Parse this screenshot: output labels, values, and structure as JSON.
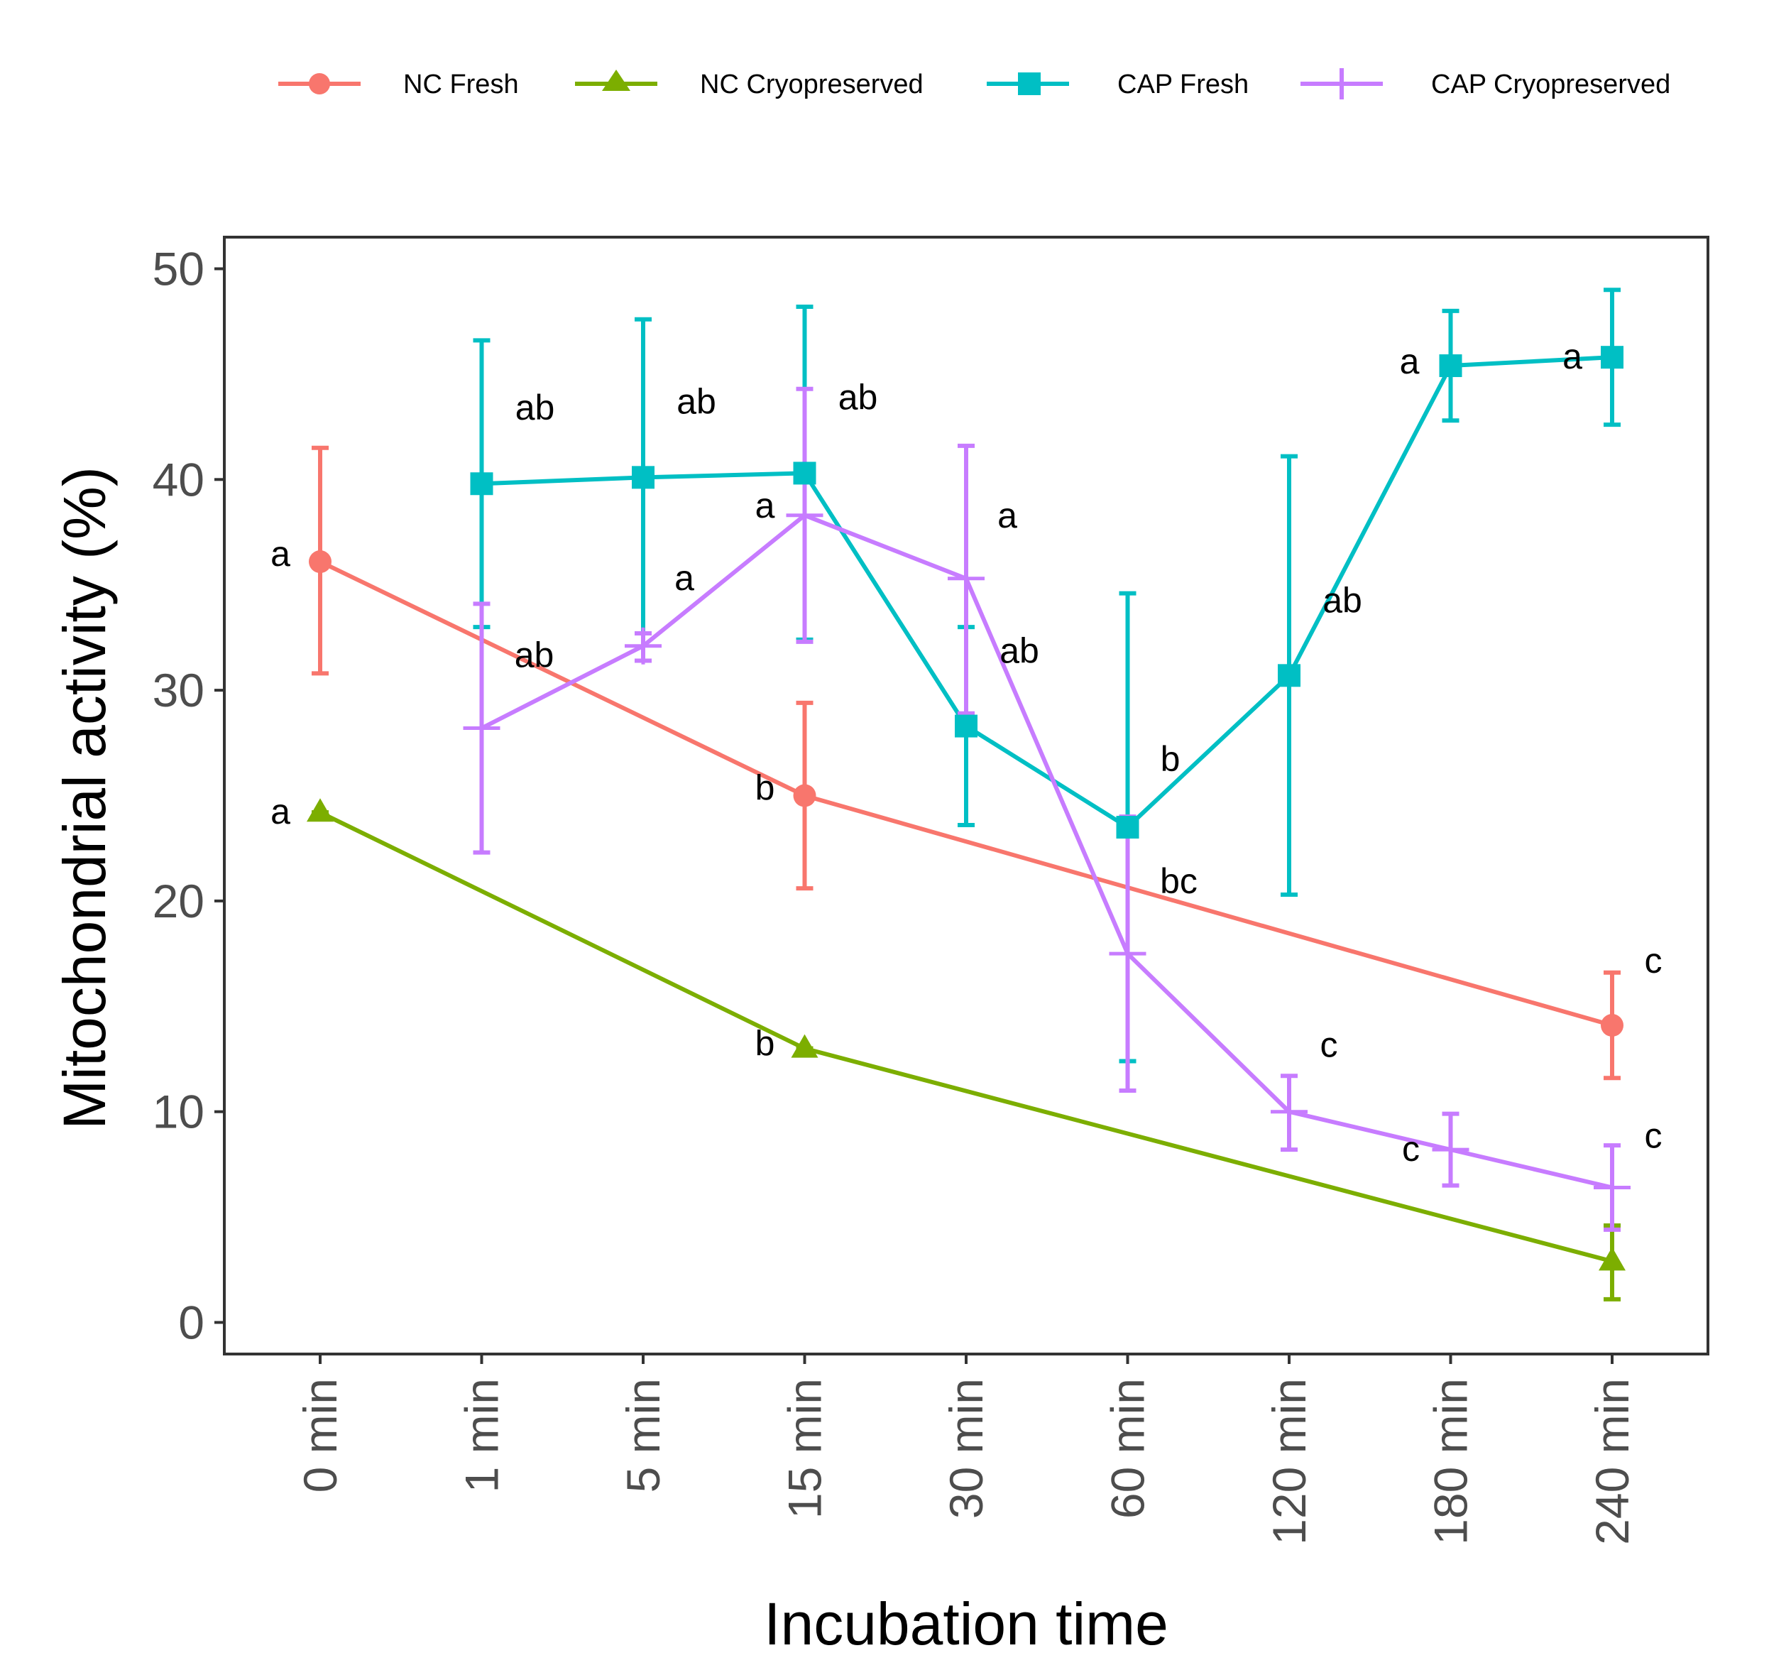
{
  "chart_data": {
    "type": "line",
    "title": "",
    "xlabel": "Incubation time",
    "ylabel": "Mitochondrial activity (%)",
    "categories": [
      "0 min",
      "1 min",
      "5 min",
      "15 min",
      "30 min",
      "60 min",
      "120 min",
      "180 min",
      "240 min"
    ],
    "ylim": [
      -1.5,
      51.5
    ],
    "yticks": [
      0,
      10,
      20,
      30,
      40,
      50
    ],
    "grid": false,
    "legend_position": "top",
    "series": [
      {
        "name": "NC Fresh",
        "color": "#F8766D",
        "marker": "circle",
        "points": [
          {
            "x": "0 min",
            "y": 36.1,
            "lo": 30.8,
            "hi": 41.5,
            "label": "a"
          },
          {
            "x": "15 min",
            "y": 25.0,
            "lo": 20.6,
            "hi": 29.4,
            "label": "b"
          },
          {
            "x": "240 min",
            "y": 14.1,
            "lo": 11.6,
            "hi": 16.6,
            "label": "c"
          }
        ]
      },
      {
        "name": "NC Cryopreserved",
        "color": "#7CAE00",
        "marker": "triangle",
        "points": [
          {
            "x": "0 min",
            "y": 24.2,
            "lo": 24.2,
            "hi": 24.2,
            "label": "a"
          },
          {
            "x": "15 min",
            "y": 13.0,
            "lo": 13.0,
            "hi": 13.0,
            "label": "b"
          },
          {
            "x": "240 min",
            "y": 2.9,
            "lo": 1.1,
            "hi": 4.6,
            "label": ""
          }
        ]
      },
      {
        "name": "CAP Fresh",
        "color": "#00BFC4",
        "marker": "square",
        "points": [
          {
            "x": "1 min",
            "y": 39.8,
            "lo": 33.0,
            "hi": 46.6,
            "label": "ab"
          },
          {
            "x": "5 min",
            "y": 40.1,
            "lo": 32.7,
            "hi": 47.6,
            "label": "ab"
          },
          {
            "x": "15 min",
            "y": 40.3,
            "lo": 32.4,
            "hi": 48.2,
            "label": "ab"
          },
          {
            "x": "30 min",
            "y": 28.3,
            "lo": 23.6,
            "hi": 33.0,
            "label": "ab"
          },
          {
            "x": "60 min",
            "y": 23.5,
            "lo": 12.4,
            "hi": 34.6,
            "label": "b"
          },
          {
            "x": "120 min",
            "y": 30.7,
            "lo": 20.3,
            "hi": 41.1,
            "label": "ab"
          },
          {
            "x": "180 min",
            "y": 45.4,
            "lo": 42.8,
            "hi": 48.0,
            "label": "a"
          },
          {
            "x": "240 min",
            "y": 45.8,
            "lo": 42.6,
            "hi": 49.0,
            "label": "a"
          }
        ]
      },
      {
        "name": "CAP Cryopreserved",
        "color": "#C77CFF",
        "marker": "plus",
        "points": [
          {
            "x": "1 min",
            "y": 28.2,
            "lo": 22.3,
            "hi": 34.1,
            "label": "ab"
          },
          {
            "x": "5 min",
            "y": 32.1,
            "lo": 31.4,
            "hi": 32.7,
            "label": "a"
          },
          {
            "x": "15 min",
            "y": 38.3,
            "lo": 32.3,
            "hi": 44.3,
            "label": "a"
          },
          {
            "x": "30 min",
            "y": 35.3,
            "lo": 28.9,
            "hi": 41.6,
            "label": "a"
          },
          {
            "x": "60 min",
            "y": 17.5,
            "lo": 11.0,
            "hi": 24.0,
            "label": "bc"
          },
          {
            "x": "120 min",
            "y": 10.0,
            "lo": 8.2,
            "hi": 11.7,
            "label": "c"
          },
          {
            "x": "180 min",
            "y": 8.2,
            "lo": 6.5,
            "hi": 9.9,
            "label": "c"
          },
          {
            "x": "240 min",
            "y": 6.4,
            "lo": 4.4,
            "hi": 8.4,
            "label": "c"
          }
        ]
      }
    ]
  }
}
